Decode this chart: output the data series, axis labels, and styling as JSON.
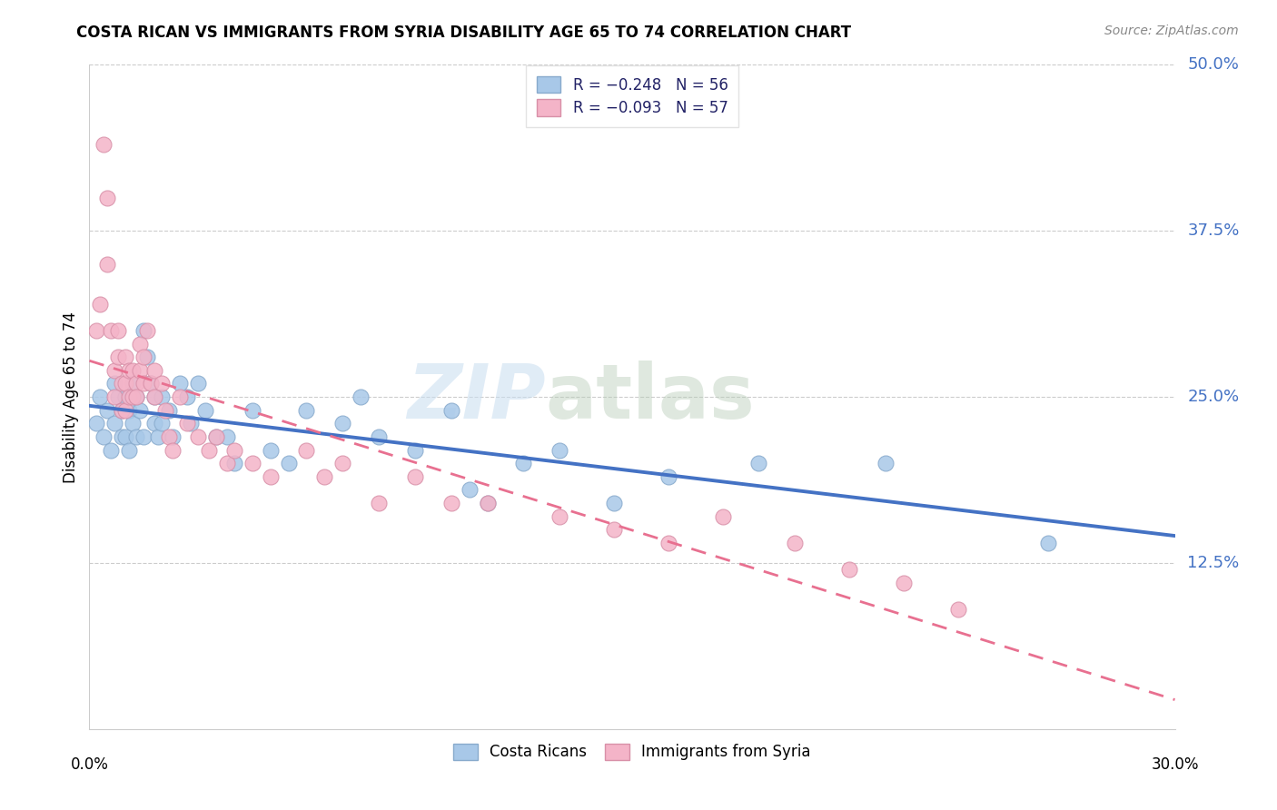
{
  "title": "COSTA RICAN VS IMMIGRANTS FROM SYRIA DISABILITY AGE 65 TO 74 CORRELATION CHART",
  "source": "Source: ZipAtlas.com",
  "ylabel": "Disability Age 65 to 74",
  "xmin": 0.0,
  "xmax": 0.3,
  "ymin": 0.0,
  "ymax": 0.5,
  "ytick_vals": [
    0.125,
    0.25,
    0.375,
    0.5
  ],
  "ytick_labels": [
    "12.5%",
    "25.0%",
    "37.5%",
    "50.0%"
  ],
  "legend_label1": "R = −0.248   N = 56",
  "legend_label2": "R = −0.093   N = 57",
  "bottom_label1": "Costa Ricans",
  "bottom_label2": "Immigrants from Syria",
  "blue_color": "#a8c8e8",
  "blue_edge": "#88aacc",
  "blue_line_color": "#4472c4",
  "pink_color": "#f4b4c8",
  "pink_edge": "#d890a8",
  "pink_line_color": "#e87090",
  "watermark_color": "#d8e8f4",
  "blue_x": [
    0.002,
    0.003,
    0.004,
    0.005,
    0.006,
    0.007,
    0.007,
    0.008,
    0.009,
    0.009,
    0.01,
    0.01,
    0.011,
    0.011,
    0.012,
    0.012,
    0.013,
    0.013,
    0.014,
    0.015,
    0.015,
    0.016,
    0.017,
    0.018,
    0.018,
    0.019,
    0.02,
    0.02,
    0.022,
    0.023,
    0.025,
    0.027,
    0.028,
    0.03,
    0.032,
    0.035,
    0.038,
    0.04,
    0.045,
    0.05,
    0.055,
    0.06,
    0.07,
    0.075,
    0.08,
    0.09,
    0.1,
    0.105,
    0.11,
    0.12,
    0.13,
    0.145,
    0.16,
    0.185,
    0.22,
    0.265
  ],
  "blue_y": [
    0.23,
    0.25,
    0.22,
    0.24,
    0.21,
    0.26,
    0.23,
    0.25,
    0.24,
    0.22,
    0.25,
    0.22,
    0.24,
    0.21,
    0.26,
    0.23,
    0.25,
    0.22,
    0.24,
    0.3,
    0.22,
    0.28,
    0.26,
    0.25,
    0.23,
    0.22,
    0.25,
    0.23,
    0.24,
    0.22,
    0.26,
    0.25,
    0.23,
    0.26,
    0.24,
    0.22,
    0.22,
    0.2,
    0.24,
    0.21,
    0.2,
    0.24,
    0.23,
    0.25,
    0.22,
    0.21,
    0.24,
    0.18,
    0.17,
    0.2,
    0.21,
    0.17,
    0.19,
    0.2,
    0.2,
    0.14
  ],
  "pink_x": [
    0.002,
    0.003,
    0.004,
    0.005,
    0.005,
    0.006,
    0.007,
    0.007,
    0.008,
    0.008,
    0.009,
    0.009,
    0.01,
    0.01,
    0.01,
    0.011,
    0.011,
    0.012,
    0.012,
    0.013,
    0.013,
    0.014,
    0.014,
    0.015,
    0.015,
    0.016,
    0.017,
    0.018,
    0.018,
    0.02,
    0.021,
    0.022,
    0.023,
    0.025,
    0.027,
    0.03,
    0.033,
    0.035,
    0.038,
    0.04,
    0.045,
    0.05,
    0.06,
    0.065,
    0.07,
    0.08,
    0.09,
    0.1,
    0.11,
    0.13,
    0.145,
    0.16,
    0.175,
    0.195,
    0.21,
    0.225,
    0.24
  ],
  "pink_y": [
    0.3,
    0.32,
    0.44,
    0.4,
    0.35,
    0.3,
    0.27,
    0.25,
    0.3,
    0.28,
    0.26,
    0.24,
    0.28,
    0.26,
    0.24,
    0.27,
    0.25,
    0.27,
    0.25,
    0.26,
    0.25,
    0.27,
    0.29,
    0.28,
    0.26,
    0.3,
    0.26,
    0.27,
    0.25,
    0.26,
    0.24,
    0.22,
    0.21,
    0.25,
    0.23,
    0.22,
    0.21,
    0.22,
    0.2,
    0.21,
    0.2,
    0.19,
    0.21,
    0.19,
    0.2,
    0.17,
    0.19,
    0.17,
    0.17,
    0.16,
    0.15,
    0.14,
    0.16,
    0.14,
    0.12,
    0.11,
    0.09
  ]
}
